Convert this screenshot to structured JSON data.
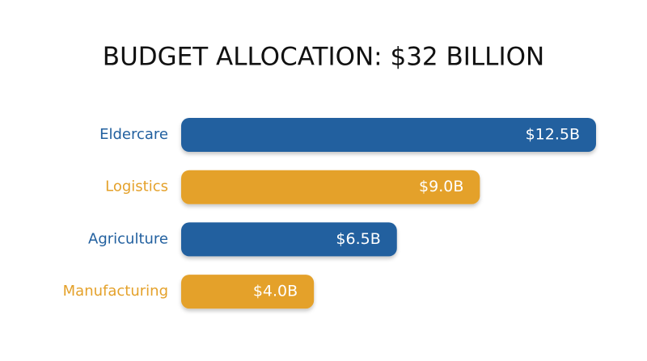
{
  "chart_data": {
    "type": "bar",
    "orientation": "horizontal",
    "title": "BUDGET ALLOCATION: $32 BILLION",
    "categories": [
      "Eldercare",
      "Logistics",
      "Agriculture",
      "Manufacturing"
    ],
    "values": [
      12.5,
      9.0,
      6.5,
      4.0
    ],
    "value_labels": [
      "$12.5B",
      "$9.0B",
      "$6.5B",
      "$4.0B"
    ],
    "colors": [
      "#22609f",
      "#e4a12a",
      "#22609f",
      "#e4a12a"
    ]
  }
}
